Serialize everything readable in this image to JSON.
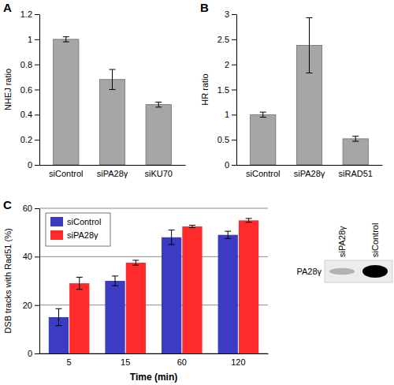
{
  "chart_data": [
    {
      "type": "bar",
      "title": "A",
      "y_label": "NHEJ ratio",
      "categories": [
        "siControl",
        "siPA28γ",
        "siKU70"
      ],
      "values": [
        1.0,
        0.68,
        0.48
      ],
      "errors": [
        0.02,
        0.08,
        0.02
      ],
      "color": "#a6a6a6",
      "ylim": [
        0,
        1.2
      ],
      "yticks": [
        0,
        0.2,
        0.4,
        0.6,
        0.8,
        1,
        1.2
      ],
      "grid": false
    },
    {
      "type": "bar",
      "title": "B",
      "y_label": "HR ratio",
      "categories": [
        "siControl",
        "siPA28γ",
        "siRAD51"
      ],
      "values": [
        1.0,
        2.38,
        0.52
      ],
      "errors": [
        0.05,
        0.55,
        0.05
      ],
      "color": "#a6a6a6",
      "ylim": [
        0,
        3
      ],
      "yticks": [
        0,
        0.5,
        1,
        1.5,
        2,
        2.5,
        3
      ],
      "grid": false
    },
    {
      "type": "bar",
      "title": "C",
      "x_label": "Time (min)",
      "y_label": "DSB tracks with Rad51 (%)",
      "categories": [
        "5",
        "15",
        "60",
        "120"
      ],
      "series": [
        {
          "name": "siControl",
          "color": "#3b3bc4",
          "values": [
            15,
            30,
            48,
            49
          ],
          "errors": [
            3.5,
            2,
            3,
            1.5
          ]
        },
        {
          "name": "siPA28γ",
          "color": "#ff2a2a",
          "values": [
            29,
            37.5,
            52.5,
            55
          ],
          "errors": [
            2.5,
            1,
            0.5,
            0.8
          ]
        }
      ],
      "ylim": [
        0,
        60
      ],
      "yticks": [
        0,
        20,
        40,
        60
      ],
      "grid": true,
      "legend": "upper left"
    }
  ],
  "blot": {
    "lanes": [
      "siPA28γ",
      "siControl"
    ],
    "band": "PA28γ"
  }
}
